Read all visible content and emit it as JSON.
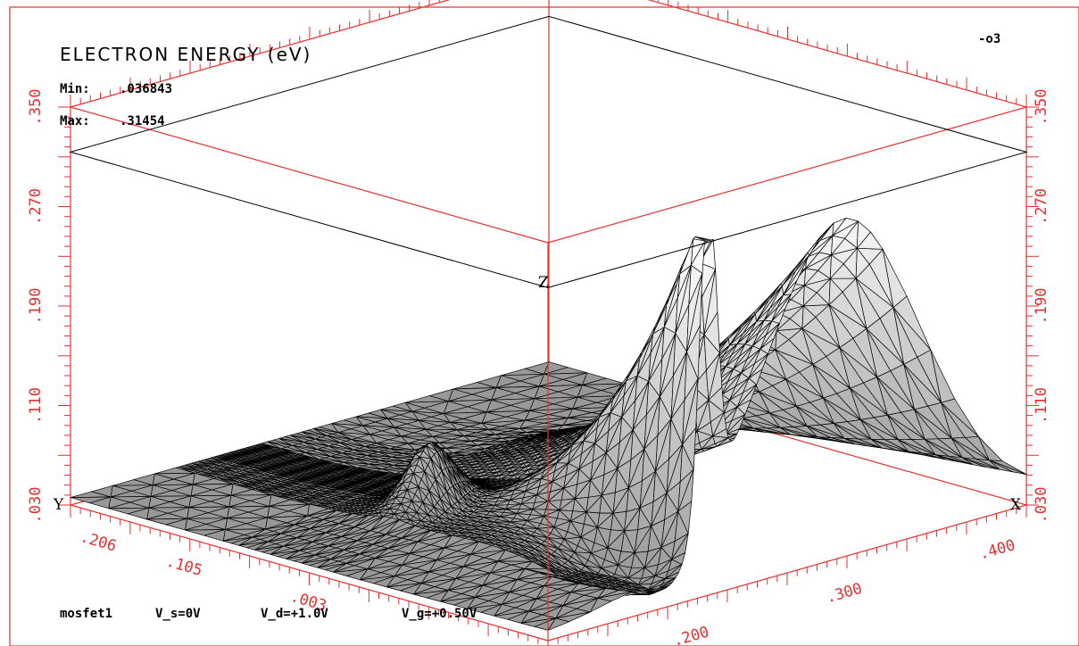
{
  "chart_data": {
    "type": "surface-3d",
    "title": "ELECTRON ENERGY (eV)",
    "min_label": "Min:",
    "min_value": ".036843",
    "max_label": "Max:",
    "max_value": ".31454",
    "corner_label": "-o3",
    "footer": {
      "device": "mosfet1",
      "vs": "V_s=0V",
      "vd": "V_d=+1.0V",
      "vg": "V_g=+0.50V"
    },
    "axes": {
      "x": {
        "name": "X",
        "ticks": [
          ".200",
          ".300",
          ".400"
        ]
      },
      "y": {
        "name": "Y",
        "ticks": [
          ".003",
          ".105",
          ".206"
        ]
      },
      "z": {
        "name": "Z",
        "ticks": [
          ".030",
          ".110",
          ".190",
          ".270",
          ".350"
        ],
        "range": [
          0.03,
          0.35
        ]
      }
    },
    "surface_shading": "gray",
    "axis_color": "#e53030"
  }
}
